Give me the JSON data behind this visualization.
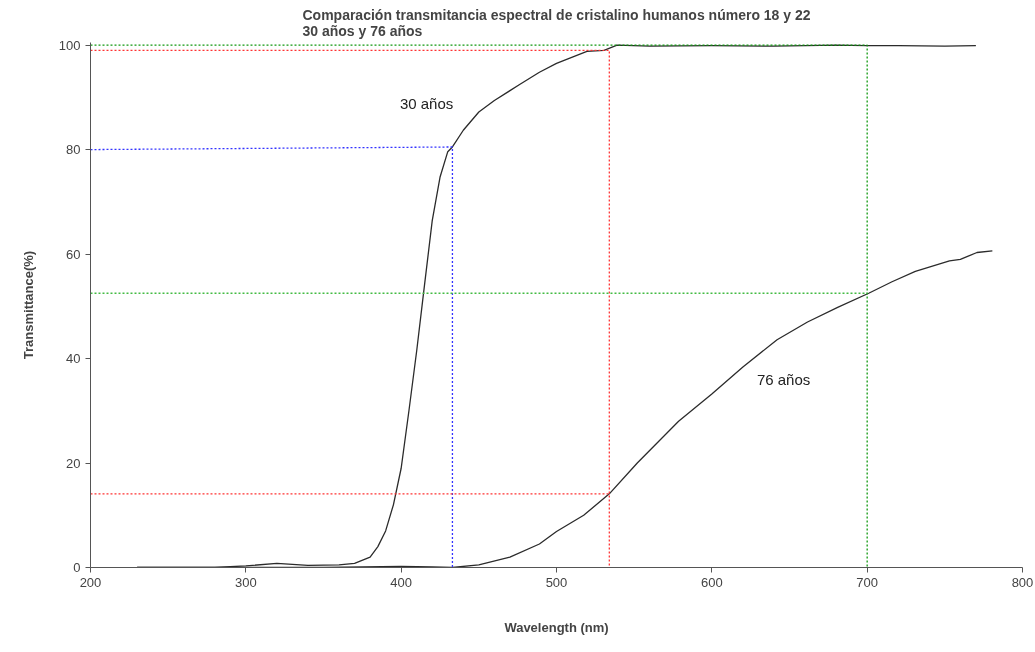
{
  "chart_data": {
    "type": "line",
    "title": "Comparación transmitancia espectral de cristalino humanos número 18 y 22\n30 años y 76 años",
    "xlabel": "Wavelength (nm)",
    "ylabel": "Transmittance(%)",
    "xlim": [
      200,
      800
    ],
    "ylim": [
      0,
      100.5
    ],
    "xticks": [
      200,
      300,
      400,
      500,
      600,
      700,
      800
    ],
    "yticks": [
      0,
      20,
      40,
      60,
      80,
      100
    ],
    "grid": false,
    "marker": "none",
    "series": [
      {
        "name": "30 años",
        "color": "#2b2b2b",
        "line_style": "solid",
        "x": [
          230,
          280,
          300,
          320,
          340,
          360,
          370,
          380,
          385,
          390,
          395,
          400,
          405,
          410,
          415,
          420,
          425,
          430,
          433,
          440,
          450,
          460,
          476,
          489,
          500,
          519.6,
          530.6,
          539,
          560,
          600,
          640,
          680,
          700,
          720,
          750,
          770
        ],
        "values": [
          0,
          0,
          0.3,
          0.8,
          0.4,
          0.5,
          0.8,
          2,
          4,
          7,
          12,
          19,
          30,
          41.5,
          54,
          66.4,
          74.7,
          79.6,
          80.5,
          83.7,
          87.2,
          89.4,
          92.4,
          94.8,
          96.5,
          98.8,
          99,
          100,
          99.8,
          99.9,
          99.8,
          100,
          99.9,
          99.9,
          99.8,
          99.9
        ]
      },
      {
        "name": "76 años",
        "color": "#2b2b2b",
        "line_style": "solid",
        "x": [
          230,
          300,
          350,
          400,
          420,
          433,
          450,
          470,
          489,
          500,
          517.5,
          534,
          552,
          578.6,
          600,
          620,
          642,
          661.6,
          681,
          701,
          716,
          731,
          753,
          760,
          770.7,
          780.6
        ],
        "values": [
          0,
          0,
          0,
          0.2,
          0.1,
          0,
          0.5,
          2,
          4.5,
          6.9,
          10,
          14.1,
          20,
          28,
          33.2,
          38.4,
          43.6,
          47,
          49.8,
          52.5,
          54.7,
          56.7,
          58.7,
          59,
          60.3,
          60.6
        ]
      },
      {
        "color": "#3333ff",
        "line_style": "dotted",
        "x": [
          200,
          433,
          433
        ],
        "values": [
          80,
          80.5,
          0
        ]
      },
      {
        "color": "#ff3333",
        "line_style": "dotted",
        "x": [
          200,
          534,
          534
        ],
        "values": [
          99,
          99,
          0
        ]
      },
      {
        "color": "#ff3333",
        "line_style": "dotted",
        "x": [
          200,
          534
        ],
        "values": [
          14.1,
          14.1
        ]
      },
      {
        "color": "#119911",
        "line_style": "dotted",
        "x": [
          200,
          700,
          700
        ],
        "values": [
          100,
          100,
          0
        ]
      },
      {
        "color": "#44bb44",
        "line_style": "dotted",
        "x": [
          200,
          700
        ],
        "values": [
          52.5,
          52.5
        ]
      }
    ],
    "legend": false
  }
}
